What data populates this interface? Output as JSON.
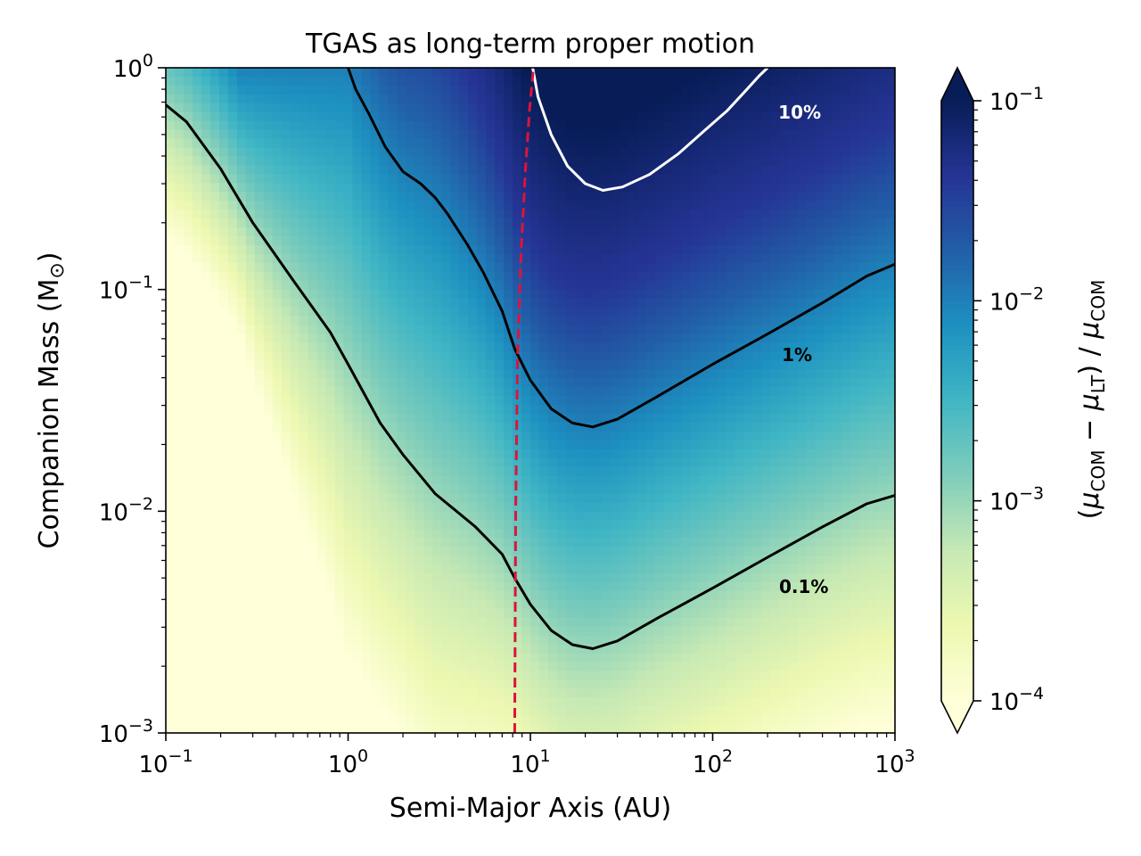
{
  "chart_data": {
    "type": "heatmap",
    "title": "TGAS as long-term proper motion",
    "xlabel": "Semi-Major Axis (AU)",
    "ylabel": "Companion Mass (M",
    "ylabel_symbol": "⊙",
    "ylabel_close": ")",
    "xscale": "log",
    "yscale": "log",
    "xlim": [
      0.1,
      1000
    ],
    "ylim": [
      0.001,
      1
    ],
    "x_ticks": [
      {
        "value": 0.1,
        "base": "10",
        "exp": "−1"
      },
      {
        "value": 1,
        "base": "10",
        "exp": "0"
      },
      {
        "value": 10,
        "base": "10",
        "exp": "1"
      },
      {
        "value": 100,
        "base": "10",
        "exp": "2"
      },
      {
        "value": 1000,
        "base": "10",
        "exp": "3"
      }
    ],
    "y_ticks": [
      {
        "value": 0.001,
        "base": "10",
        "exp": "−3"
      },
      {
        "value": 0.01,
        "base": "10",
        "exp": "−2"
      },
      {
        "value": 0.1,
        "base": "10",
        "exp": "−1"
      },
      {
        "value": 1,
        "base": "10",
        "exp": "0"
      }
    ],
    "colorbar": {
      "label": "(μ_COM − μ_LT) / μ_COM",
      "scale": "log",
      "range": [
        0.0001,
        0.1
      ],
      "extend": "both",
      "colormap": [
        "#ffffd9",
        "#edf8b1",
        "#c7e9b4",
        "#7fcdbb",
        "#41b6c4",
        "#1d91c0",
        "#225ea8",
        "#253494",
        "#081d58"
      ],
      "ticks": [
        {
          "value": 0.0001,
          "base": "10",
          "exp": "−4"
        },
        {
          "value": 0.001,
          "base": "10",
          "exp": "−3"
        },
        {
          "value": 0.01,
          "base": "10",
          "exp": "−2"
        },
        {
          "value": 0.1,
          "base": "10",
          "exp": "−1"
        }
      ]
    },
    "contours": [
      {
        "label": "0.1%",
        "level": 0.001,
        "color": "#000000",
        "label_at": [
          316,
          0.0045
        ],
        "points": [
          [
            0.1,
            0.68
          ],
          [
            0.13,
            0.57
          ],
          [
            0.2,
            0.35
          ],
          [
            0.3,
            0.2
          ],
          [
            0.5,
            0.11
          ],
          [
            0.8,
            0.064
          ],
          [
            1.0,
            0.046
          ],
          [
            1.5,
            0.025
          ],
          [
            2.0,
            0.018
          ],
          [
            3.0,
            0.012
          ],
          [
            5.0,
            0.0085
          ],
          [
            7.0,
            0.0064
          ],
          [
            8.2,
            0.005
          ],
          [
            10,
            0.0038
          ],
          [
            13,
            0.0029
          ],
          [
            17,
            0.0025
          ],
          [
            22,
            0.0024
          ],
          [
            30,
            0.0026
          ],
          [
            50,
            0.0033
          ],
          [
            100,
            0.0045
          ],
          [
            200,
            0.0062
          ],
          [
            400,
            0.0085
          ],
          [
            700,
            0.0108
          ],
          [
            1000,
            0.0118
          ]
        ]
      },
      {
        "label": "1%",
        "level": 0.01,
        "color": "#000000",
        "label_at": [
          290,
          0.05
        ],
        "points": [
          [
            1.0,
            1.0
          ],
          [
            1.1,
            0.8
          ],
          [
            1.3,
            0.62
          ],
          [
            1.6,
            0.44
          ],
          [
            2.0,
            0.34
          ],
          [
            2.5,
            0.3
          ],
          [
            3.0,
            0.26
          ],
          [
            3.5,
            0.22
          ],
          [
            4.5,
            0.16
          ],
          [
            5.5,
            0.12
          ],
          [
            7.0,
            0.08
          ],
          [
            8.2,
            0.054
          ],
          [
            10,
            0.039
          ],
          [
            13,
            0.029
          ],
          [
            17,
            0.025
          ],
          [
            22,
            0.024
          ],
          [
            30,
            0.026
          ],
          [
            50,
            0.033
          ],
          [
            100,
            0.046
          ],
          [
            200,
            0.063
          ],
          [
            400,
            0.087
          ],
          [
            700,
            0.115
          ],
          [
            1000,
            0.13
          ]
        ]
      },
      {
        "label": "10%",
        "level": 0.1,
        "color": "#ffffff",
        "label_at": [
          300,
          0.62
        ],
        "points": [
          [
            10.3,
            1.0
          ],
          [
            11,
            0.74
          ],
          [
            13,
            0.5
          ],
          [
            16,
            0.36
          ],
          [
            20,
            0.3
          ],
          [
            25,
            0.28
          ],
          [
            32,
            0.29
          ],
          [
            45,
            0.33
          ],
          [
            65,
            0.41
          ],
          [
            90,
            0.52
          ],
          [
            120,
            0.64
          ],
          [
            150,
            0.78
          ],
          [
            180,
            0.92
          ],
          [
            200,
            1.0
          ]
        ]
      }
    ],
    "reference_line": {
      "style": "dashed",
      "color": "#dc143c",
      "points": [
        [
          8.2,
          0.001
        ],
        [
          8.3,
          0.01
        ],
        [
          8.5,
          0.05
        ],
        [
          8.9,
          0.15
        ],
        [
          9.4,
          0.35
        ],
        [
          9.9,
          0.65
        ],
        [
          10.4,
          1.0
        ]
      ]
    }
  }
}
